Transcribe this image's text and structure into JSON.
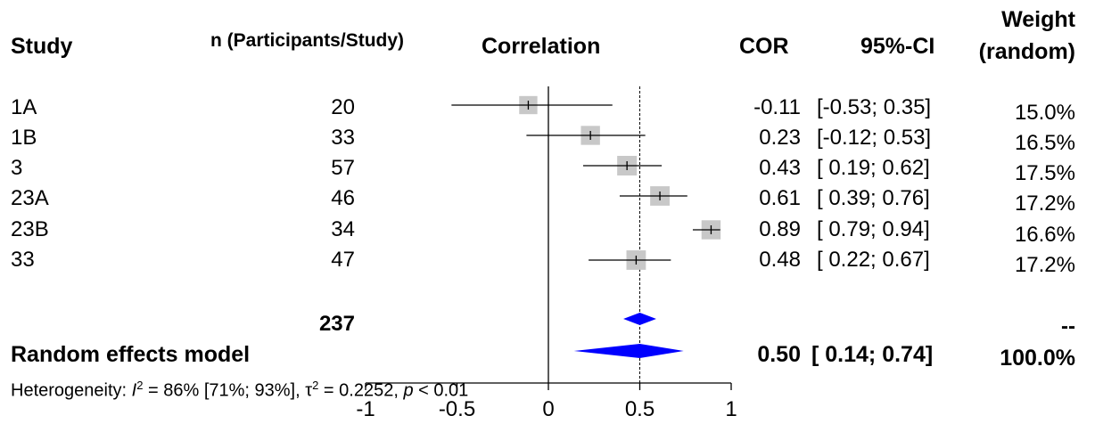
{
  "headers": {
    "study": "Study",
    "n": "n (Participants/Study)",
    "correlation": "Correlation",
    "cor": "COR",
    "ci": "95%-CI",
    "weight_line1": "Weight",
    "weight_line2": "(random)"
  },
  "rows": [
    {
      "study": "1A",
      "n": "20",
      "cor_text": "-0.11",
      "ci_text": "[-0.53; 0.35]",
      "weight": "15.0%"
    },
    {
      "study": "1B",
      "n": "33",
      "cor_text": "0.23",
      "ci_text": "[-0.12; 0.53]",
      "weight": "16.5%"
    },
    {
      "study": "3",
      "n": "57",
      "cor_text": "0.43",
      "ci_text": "[ 0.19; 0.62]",
      "weight": "17.5%"
    },
    {
      "study": "23A",
      "n": "46",
      "cor_text": "0.61",
      "ci_text": "[ 0.39; 0.76]",
      "weight": "17.2%"
    },
    {
      "study": "23B",
      "n": "34",
      "cor_text": "0.89",
      "ci_text": "[ 0.79; 0.94]",
      "weight": "16.6%"
    },
    {
      "study": "33",
      "n": "47",
      "cor_text": "0.48",
      "ci_text": "[ 0.22; 0.67]",
      "weight": "17.2%"
    }
  ],
  "total_n": "237",
  "dash_weight": "--",
  "summary": {
    "label": "Random effects model",
    "cor_text": "0.50",
    "ci_text": "[ 0.14; 0.74]",
    "weight": "100.0%"
  },
  "heterogeneity": {
    "prefix": "Heterogeneity: ",
    "i2_symbol": "I",
    "i2_sup": "2",
    "i2_value": " = 86% [71%; 93%], ",
    "tau_symbol": "τ",
    "tau_sup": "2",
    "tau_value": " = 0.2252, ",
    "p_symbol": "p",
    "p_value": " < 0.01"
  },
  "chart_data": {
    "type": "forest",
    "xlim": [
      -1,
      1
    ],
    "ticks": [
      -1,
      -0.5,
      0,
      0.5,
      1
    ],
    "tick_labels": [
      "-1",
      "-0.5",
      "0",
      "0.5",
      "1"
    ],
    "null_value": 0,
    "studies": [
      {
        "label": "1A",
        "estimate": -0.11,
        "lower": -0.53,
        "upper": 0.35,
        "weight": 15.0
      },
      {
        "label": "1B",
        "estimate": 0.23,
        "lower": -0.12,
        "upper": 0.53,
        "weight": 16.5
      },
      {
        "label": "3",
        "estimate": 0.43,
        "lower": 0.19,
        "upper": 0.62,
        "weight": 17.5
      },
      {
        "label": "23A",
        "estimate": 0.61,
        "lower": 0.39,
        "upper": 0.76,
        "weight": 17.2
      },
      {
        "label": "23B",
        "estimate": 0.89,
        "lower": 0.79,
        "upper": 0.94,
        "weight": 16.6
      },
      {
        "label": "33",
        "estimate": 0.48,
        "lower": 0.22,
        "upper": 0.67,
        "weight": 17.2
      }
    ],
    "random_effects": {
      "estimate": 0.5,
      "lower": 0.14,
      "upper": 0.74
    },
    "prediction_diamond": {
      "estimate": 0.5,
      "lower": 0.41,
      "upper": 0.59
    },
    "colors": {
      "box": "#c8c8c8",
      "diamond": "#0000ff",
      "line": "#000000"
    }
  }
}
